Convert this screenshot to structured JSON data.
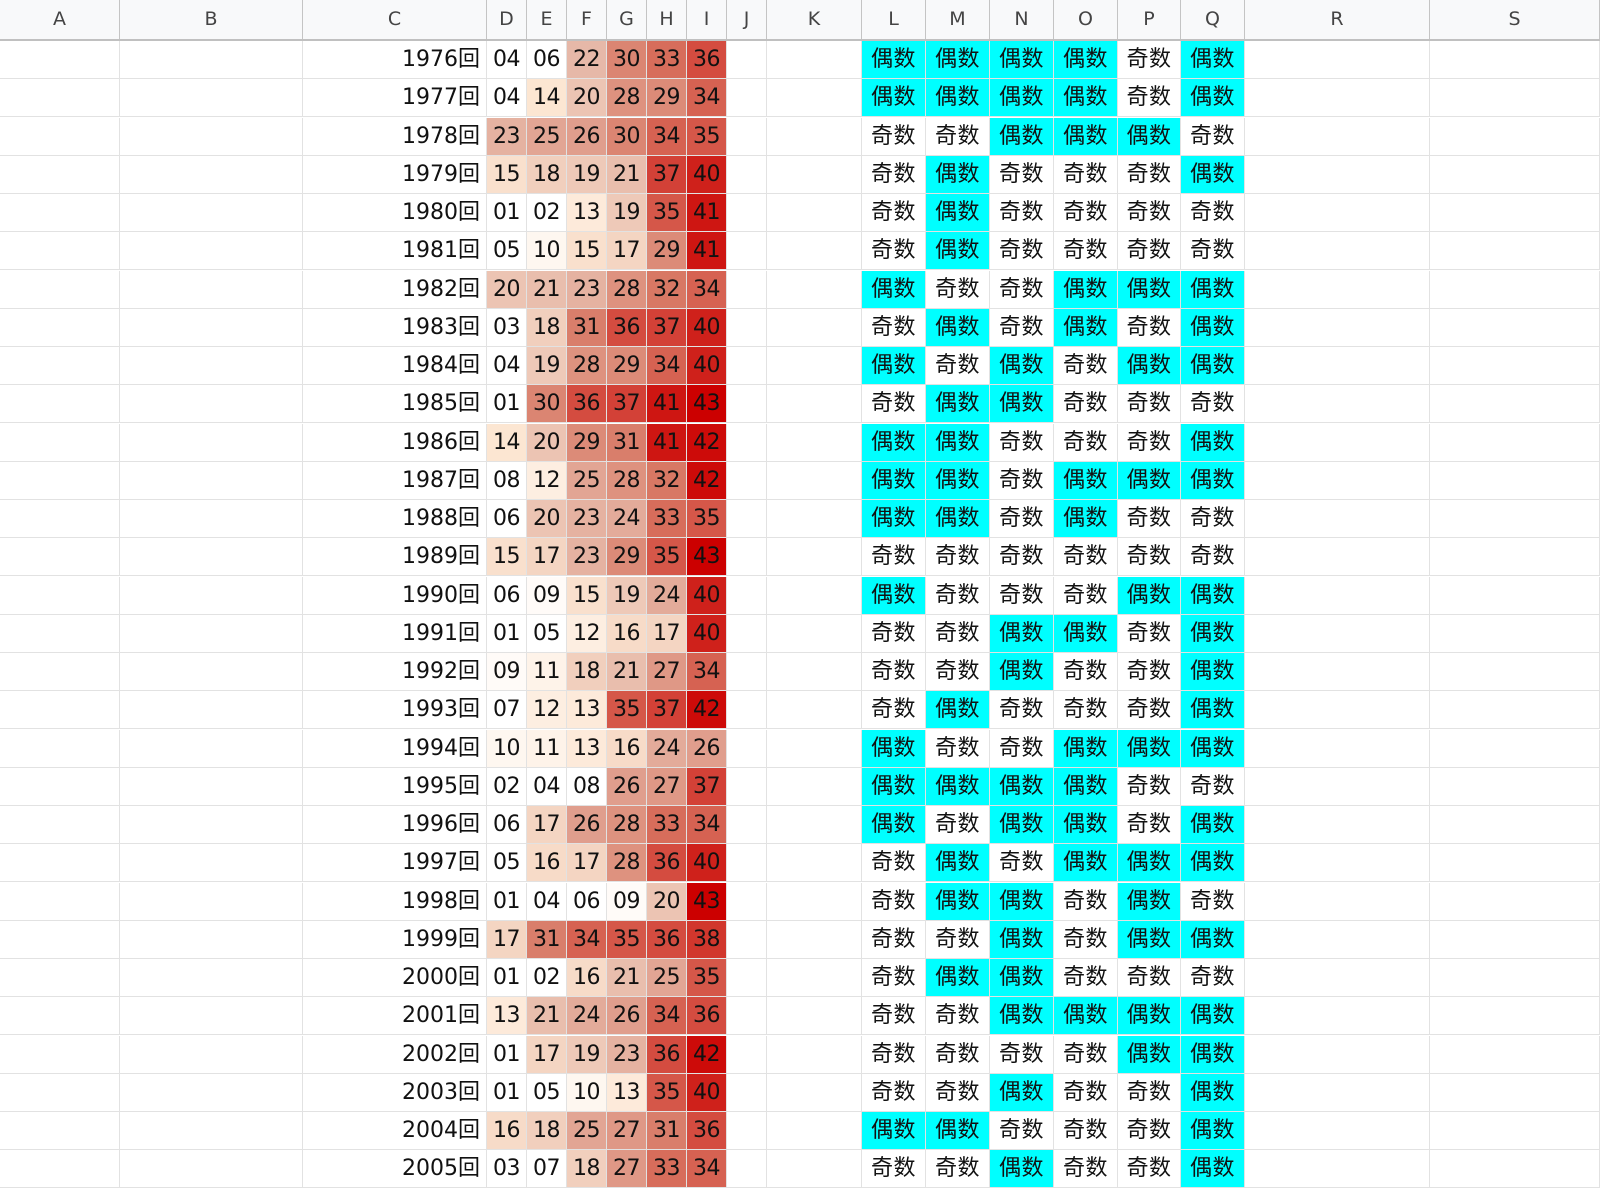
{
  "columns": [
    "A",
    "B",
    "C",
    "D",
    "E",
    "F",
    "G",
    "H",
    "I",
    "J",
    "K",
    "L",
    "M",
    "N",
    "O",
    "P",
    "Q",
    "R",
    "S"
  ],
  "colors": {
    "even_highlight": "#00ffff",
    "odd_plain": "#ffffff",
    "heat_low": "#ffffff",
    "heat_mid": "#e6b8a8",
    "heat_high": "#cc0000"
  },
  "parity_labels": {
    "odd": "奇数",
    "even": "偶数"
  },
  "rows": [
    {
      "label": "1976回",
      "nums": [
        "04",
        "06",
        "22",
        "30",
        "33",
        "36"
      ],
      "parity": [
        "偶数",
        "偶数",
        "偶数",
        "偶数",
        "奇数",
        "偶数"
      ]
    },
    {
      "label": "1977回",
      "nums": [
        "04",
        "14",
        "20",
        "28",
        "29",
        "34"
      ],
      "parity": [
        "偶数",
        "偶数",
        "偶数",
        "偶数",
        "奇数",
        "偶数"
      ]
    },
    {
      "label": "1978回",
      "nums": [
        "23",
        "25",
        "26",
        "30",
        "34",
        "35"
      ],
      "parity": [
        "奇数",
        "奇数",
        "偶数",
        "偶数",
        "偶数",
        "奇数"
      ]
    },
    {
      "label": "1979回",
      "nums": [
        "15",
        "18",
        "19",
        "21",
        "37",
        "40"
      ],
      "parity": [
        "奇数",
        "偶数",
        "奇数",
        "奇数",
        "奇数",
        "偶数"
      ]
    },
    {
      "label": "1980回",
      "nums": [
        "01",
        "02",
        "13",
        "19",
        "35",
        "41"
      ],
      "parity": [
        "奇数",
        "偶数",
        "奇数",
        "奇数",
        "奇数",
        "奇数"
      ]
    },
    {
      "label": "1981回",
      "nums": [
        "05",
        "10",
        "15",
        "17",
        "29",
        "41"
      ],
      "parity": [
        "奇数",
        "偶数",
        "奇数",
        "奇数",
        "奇数",
        "奇数"
      ]
    },
    {
      "label": "1982回",
      "nums": [
        "20",
        "21",
        "23",
        "28",
        "32",
        "34"
      ],
      "parity": [
        "偶数",
        "奇数",
        "奇数",
        "偶数",
        "偶数",
        "偶数"
      ]
    },
    {
      "label": "1983回",
      "nums": [
        "03",
        "18",
        "31",
        "36",
        "37",
        "40"
      ],
      "parity": [
        "奇数",
        "偶数",
        "奇数",
        "偶数",
        "奇数",
        "偶数"
      ]
    },
    {
      "label": "1984回",
      "nums": [
        "04",
        "19",
        "28",
        "29",
        "34",
        "40"
      ],
      "parity": [
        "偶数",
        "奇数",
        "偶数",
        "奇数",
        "偶数",
        "偶数"
      ]
    },
    {
      "label": "1985回",
      "nums": [
        "01",
        "30",
        "36",
        "37",
        "41",
        "43"
      ],
      "parity": [
        "奇数",
        "偶数",
        "偶数",
        "奇数",
        "奇数",
        "奇数"
      ]
    },
    {
      "label": "1986回",
      "nums": [
        "14",
        "20",
        "29",
        "31",
        "41",
        "42"
      ],
      "parity": [
        "偶数",
        "偶数",
        "奇数",
        "奇数",
        "奇数",
        "偶数"
      ]
    },
    {
      "label": "1987回",
      "nums": [
        "08",
        "12",
        "25",
        "28",
        "32",
        "42"
      ],
      "parity": [
        "偶数",
        "偶数",
        "奇数",
        "偶数",
        "偶数",
        "偶数"
      ]
    },
    {
      "label": "1988回",
      "nums": [
        "06",
        "20",
        "23",
        "24",
        "33",
        "35"
      ],
      "parity": [
        "偶数",
        "偶数",
        "奇数",
        "偶数",
        "奇数",
        "奇数"
      ]
    },
    {
      "label": "1989回",
      "nums": [
        "15",
        "17",
        "23",
        "29",
        "35",
        "43"
      ],
      "parity": [
        "奇数",
        "奇数",
        "奇数",
        "奇数",
        "奇数",
        "奇数"
      ]
    },
    {
      "label": "1990回",
      "nums": [
        "06",
        "09",
        "15",
        "19",
        "24",
        "40"
      ],
      "parity": [
        "偶数",
        "奇数",
        "奇数",
        "奇数",
        "偶数",
        "偶数"
      ]
    },
    {
      "label": "1991回",
      "nums": [
        "01",
        "05",
        "12",
        "16",
        "17",
        "40"
      ],
      "parity": [
        "奇数",
        "奇数",
        "偶数",
        "偶数",
        "奇数",
        "偶数"
      ]
    },
    {
      "label": "1992回",
      "nums": [
        "09",
        "11",
        "18",
        "21",
        "27",
        "34"
      ],
      "parity": [
        "奇数",
        "奇数",
        "偶数",
        "奇数",
        "奇数",
        "偶数"
      ]
    },
    {
      "label": "1993回",
      "nums": [
        "07",
        "12",
        "13",
        "35",
        "37",
        "42"
      ],
      "parity": [
        "奇数",
        "偶数",
        "奇数",
        "奇数",
        "奇数",
        "偶数"
      ]
    },
    {
      "label": "1994回",
      "nums": [
        "10",
        "11",
        "13",
        "16",
        "24",
        "26"
      ],
      "parity": [
        "偶数",
        "奇数",
        "奇数",
        "偶数",
        "偶数",
        "偶数"
      ]
    },
    {
      "label": "1995回",
      "nums": [
        "02",
        "04",
        "08",
        "26",
        "27",
        "37"
      ],
      "parity": [
        "偶数",
        "偶数",
        "偶数",
        "偶数",
        "奇数",
        "奇数"
      ]
    },
    {
      "label": "1996回",
      "nums": [
        "06",
        "17",
        "26",
        "28",
        "33",
        "34"
      ],
      "parity": [
        "偶数",
        "奇数",
        "偶数",
        "偶数",
        "奇数",
        "偶数"
      ]
    },
    {
      "label": "1997回",
      "nums": [
        "05",
        "16",
        "17",
        "28",
        "36",
        "40"
      ],
      "parity": [
        "奇数",
        "偶数",
        "奇数",
        "偶数",
        "偶数",
        "偶数"
      ]
    },
    {
      "label": "1998回",
      "nums": [
        "01",
        "04",
        "06",
        "09",
        "20",
        "43"
      ],
      "parity": [
        "奇数",
        "偶数",
        "偶数",
        "奇数",
        "偶数",
        "奇数"
      ]
    },
    {
      "label": "1999回",
      "nums": [
        "17",
        "31",
        "34",
        "35",
        "36",
        "38"
      ],
      "parity": [
        "奇数",
        "奇数",
        "偶数",
        "奇数",
        "偶数",
        "偶数"
      ]
    },
    {
      "label": "2000回",
      "nums": [
        "01",
        "02",
        "16",
        "21",
        "25",
        "35"
      ],
      "parity": [
        "奇数",
        "偶数",
        "偶数",
        "奇数",
        "奇数",
        "奇数"
      ]
    },
    {
      "label": "2001回",
      "nums": [
        "13",
        "21",
        "24",
        "26",
        "34",
        "36"
      ],
      "parity": [
        "奇数",
        "奇数",
        "偶数",
        "偶数",
        "偶数",
        "偶数"
      ]
    },
    {
      "label": "2002回",
      "nums": [
        "01",
        "17",
        "19",
        "23",
        "36",
        "42"
      ],
      "parity": [
        "奇数",
        "奇数",
        "奇数",
        "奇数",
        "偶数",
        "偶数"
      ]
    },
    {
      "label": "2003回",
      "nums": [
        "01",
        "05",
        "10",
        "13",
        "35",
        "40"
      ],
      "parity": [
        "奇数",
        "奇数",
        "偶数",
        "奇数",
        "奇数",
        "偶数"
      ]
    },
    {
      "label": "2004回",
      "nums": [
        "16",
        "18",
        "25",
        "27",
        "31",
        "36"
      ],
      "parity": [
        "偶数",
        "偶数",
        "奇数",
        "奇数",
        "奇数",
        "偶数"
      ]
    },
    {
      "label": "2005回",
      "nums": [
        "03",
        "07",
        "18",
        "27",
        "33",
        "34"
      ],
      "parity": [
        "奇数",
        "奇数",
        "偶数",
        "奇数",
        "奇数",
        "偶数"
      ]
    }
  ]
}
